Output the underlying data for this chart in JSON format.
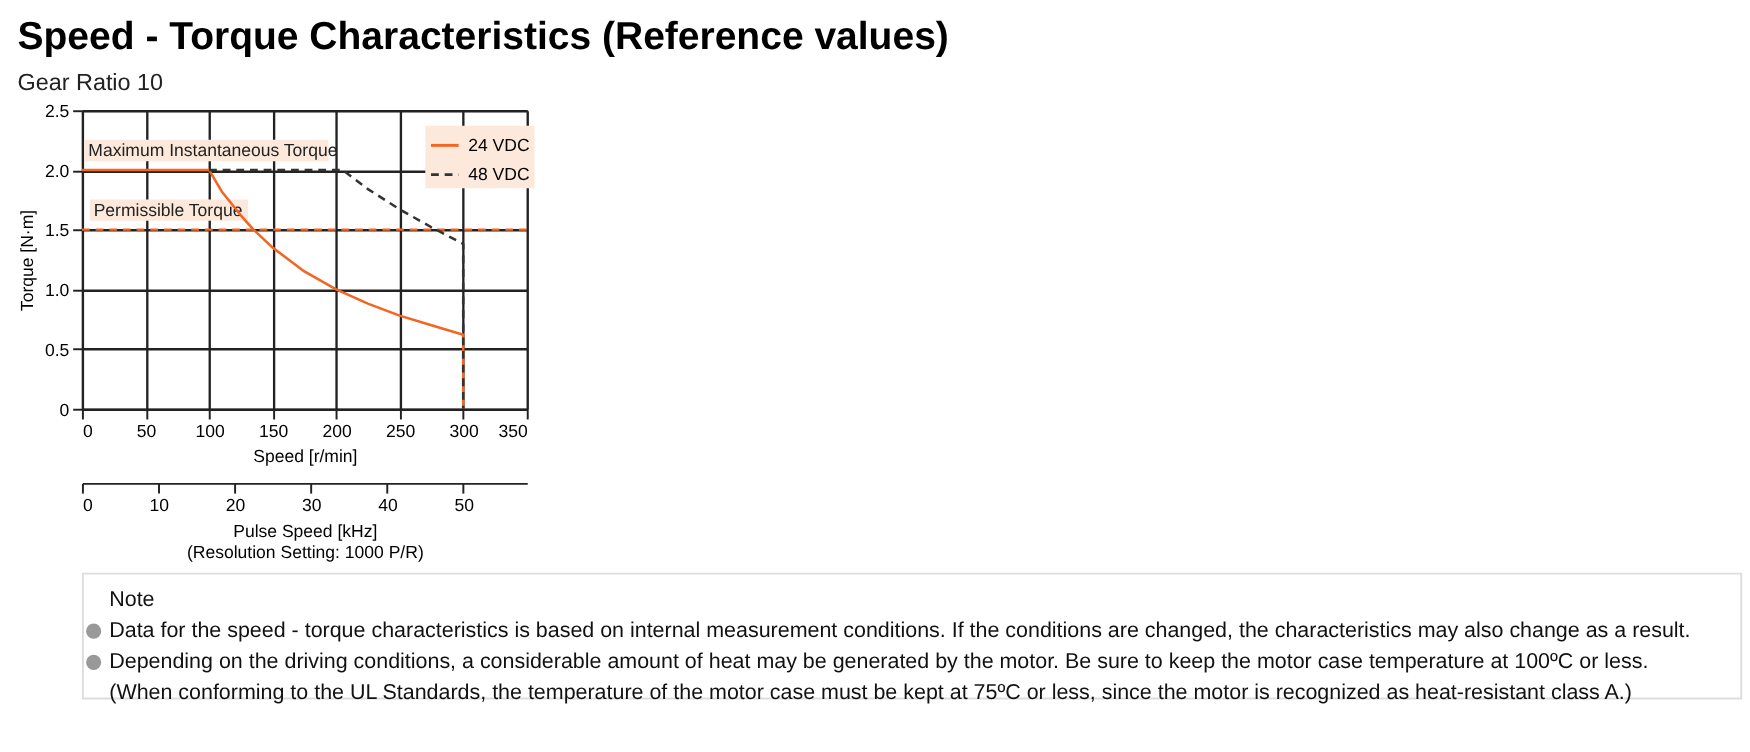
{
  "chart_data": {
    "type": "line",
    "title": "Speed - Torque Characteristics (Reference values)",
    "subtitle": "Gear Ratio 10",
    "xlabel": "Speed [r/min]",
    "ylabel": "Torque [N·m]",
    "x2label": "Pulse Speed [kHz]\n(Resolution Setting: 1000 P/R)",
    "xlim": [
      0,
      350
    ],
    "xticks": [
      0,
      50,
      100,
      150,
      200,
      250,
      300,
      350
    ],
    "ylim": [
      0,
      2.5
    ],
    "yticks": [
      0,
      {
        "value": 0.5,
        "label": "0.5"
      },
      {
        "value": 1,
        "label": "1.0"
      },
      {
        "value": 1.5,
        "label": "1.5"
      },
      {
        "value": 2,
        "label": "2.0"
      },
      {
        "value": 2.5,
        "label": "2.5"
      }
    ],
    "x2lim": [
      0,
      58.33
    ],
    "x2ticks": [
      0,
      10,
      20,
      30,
      40,
      50
    ],
    "grid": true,
    "legend": "top right",
    "series": [
      {
        "name": "24 VDC",
        "color": "#f26522",
        "line_style": "solid",
        "x": [
          0,
          100,
          110,
          125,
          135,
          150,
          175,
          200,
          225,
          250,
          275,
          300,
          300
        ],
        "values": [
          2.0,
          2.0,
          1.82,
          1.62,
          1.5,
          1.35,
          1.15,
          1.0,
          0.88,
          0.78,
          0.7,
          0.62,
          0
        ]
      },
      {
        "name": "48 VDC",
        "color": "#333333",
        "line_style": "dashed",
        "x": [
          100,
          205,
          225,
          250,
          275,
          300,
          300
        ],
        "values": [
          2.0,
          2.0,
          1.84,
          1.67,
          1.52,
          1.38,
          0
        ]
      }
    ],
    "ref_lines": [
      {
        "axis": "y",
        "value": 1.5,
        "label": "Permissible Torque",
        "color": "#f26522",
        "line_style": "dashed"
      }
    ],
    "annotations": [
      {
        "text": "Maximum Instantaneous Torque",
        "x": 5,
        "y": 2.0
      },
      "Note",
      "Data for the speed - torque characteristics is based on internal measurement conditions. If the conditions are changed, the characteristics may also change as a result.",
      "Depending on the driving conditions, a considerable amount of heat may be generated by the motor. Be sure to keep the motor case temperature at 100ºC or less.",
      "(When conforming to the UL Standards, the temperature of the motor case must be kept at 75ºC or less, since the motor is recognized as heat-resistant class A.)"
    ]
  }
}
